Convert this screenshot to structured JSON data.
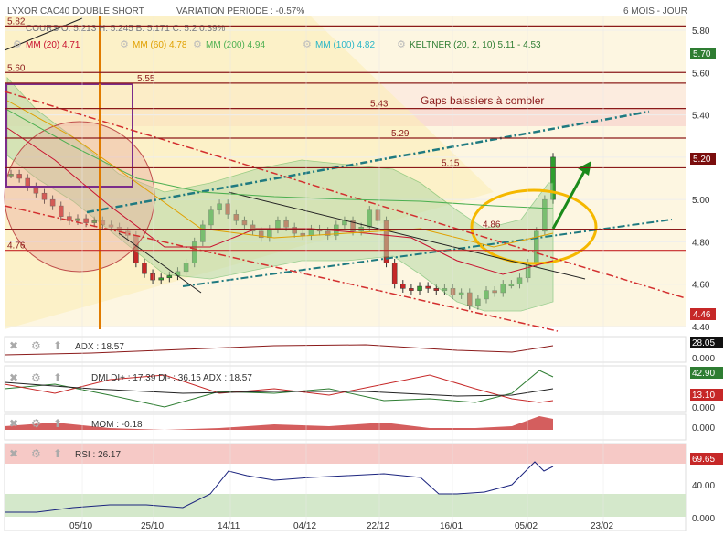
{
  "header": {
    "title": "LYXOR CAC40 DOUBLE SHORT",
    "variation": "VARIATION PERIODE : -0.57%",
    "period": "6 MOIS - JOUR",
    "ohlc": "COURS   O: 5.213   H: 5.245   B: 5.171   C: 5.2  0.39%"
  },
  "legend": [
    {
      "label": "MM (20)",
      "value": "4.71",
      "color": "#c8102e"
    },
    {
      "label": "MM (60)",
      "value": "4.78",
      "color": "#e0a000"
    },
    {
      "label": "MM (200)",
      "value": "4.94",
      "color": "#4caf50"
    },
    {
      "label": "MM (100)",
      "value": "4.82",
      "color": "#29b6c6"
    },
    {
      "label": "KELTNER (20, 2, 10)",
      "value": "5.11 - 4.53",
      "color": "#2e7d32"
    }
  ],
  "annotations": {
    "gaps_text": "Gaps baissiers à combler",
    "levels": [
      "5.82",
      "5.60",
      "5.55",
      "5.43",
      "5.29",
      "5.15",
      "4.86",
      "4.76"
    ],
    "price_tag": "5.70",
    "last_tag": "5.20",
    "low_tag": "4.46"
  },
  "indicators": {
    "adx": {
      "label": "ADX : 18.57",
      "value_tag": "28.05",
      "zero_tag": "0.000"
    },
    "dmi": {
      "label": "DMI DI+ : 17.39  DI- : 36.15  ADX : 18.57",
      "tag_green": "42.90",
      "tag_red": "13.10",
      "zero_tag": "0.000"
    },
    "mom": {
      "label": "MOM : -0.18",
      "zero_tag": "0.000"
    },
    "rsi": {
      "label": "RSI : 26.17",
      "value_tag": "69.65",
      "mid_tag": "40.00",
      "zero_tag": "0.000"
    }
  },
  "chart_data": {
    "type": "candlestick",
    "y_ticks": [
      "5.80",
      "5.60",
      "5.40",
      "5.20",
      "5.00",
      "4.80",
      "4.60",
      "4.40"
    ],
    "ylim": [
      4.4,
      5.8
    ],
    "x_ticks": [
      "05/10",
      "25/10",
      "14/11",
      "04/12",
      "22/12",
      "16/01",
      "05/02",
      "23/02"
    ],
    "series": [
      {
        "name": "Price",
        "values": [
          5.12,
          5.1,
          5.06,
          5.03,
          5.0,
          4.97,
          4.92,
          4.9,
          4.91,
          4.89,
          4.9,
          4.88,
          4.87,
          4.85,
          4.83,
          4.7,
          4.65,
          4.62,
          4.63,
          4.64,
          4.66,
          4.7,
          4.8,
          4.88,
          4.95,
          4.98,
          4.93,
          4.9,
          4.88,
          4.85,
          4.82,
          4.86,
          4.9,
          4.87,
          4.84,
          4.83,
          4.86,
          4.85,
          4.83,
          4.88,
          4.9,
          4.85,
          4.87,
          4.95,
          4.9,
          4.7,
          4.6,
          4.58,
          4.57,
          4.59,
          4.58,
          4.57,
          4.58,
          4.55,
          4.56,
          4.5,
          4.53,
          4.57,
          4.56,
          4.6,
          4.6,
          4.63,
          4.7,
          4.85,
          5.0,
          5.2
        ]
      }
    ]
  }
}
